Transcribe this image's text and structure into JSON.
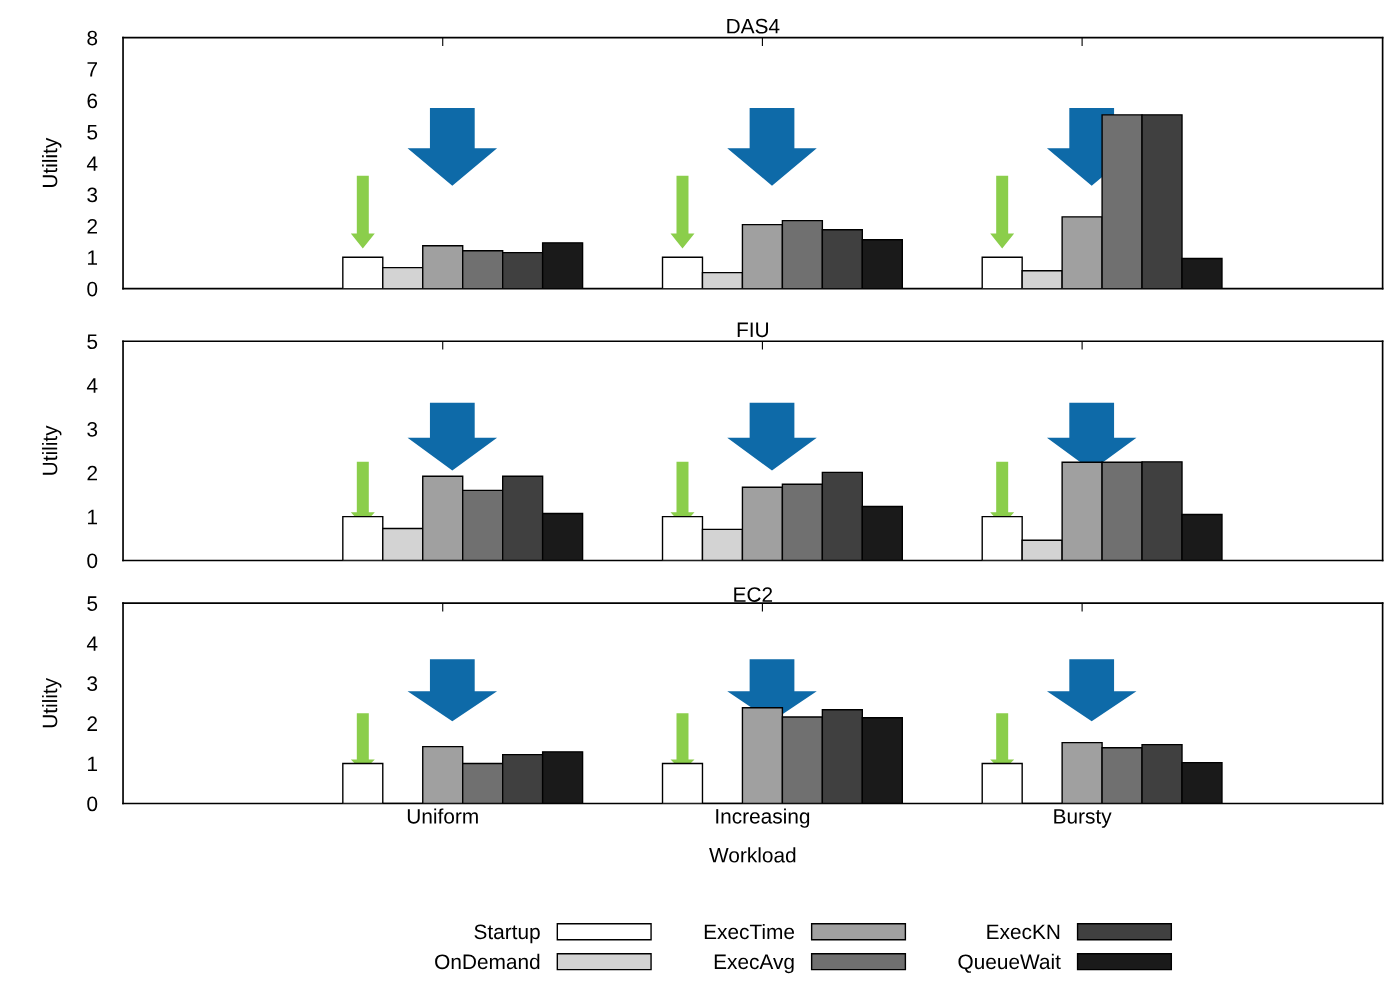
{
  "chart_data": [
    {
      "type": "bar",
      "title": "DAS4",
      "ylabel": "Utility",
      "categories": [
        null,
        null,
        null
      ],
      "ylim": [
        0,
        8
      ],
      "yticks": [
        0,
        1,
        2,
        3,
        4,
        5,
        6,
        7,
        8
      ],
      "tick_labels": "y",
      "legend": "bottom",
      "grid": false,
      "series": [
        {
          "name": "Startup",
          "color": "#ffffff",
          "values": [
            1.0,
            1.0,
            1.0
          ]
        },
        {
          "name": "OnDemand",
          "color": "#d3d3d3",
          "values": [
            0.67,
            0.51,
            0.57
          ]
        },
        {
          "name": "ExecTime",
          "color": "#a0a0a0",
          "values": [
            1.37,
            2.04,
            2.29
          ]
        },
        {
          "name": "ExecAvg",
          "color": "#707070",
          "values": [
            1.21,
            2.17,
            5.54
          ]
        },
        {
          "name": "ExecKN",
          "color": "#404040",
          "values": [
            1.15,
            1.88,
            5.54
          ]
        },
        {
          "name": "QueueWait",
          "color": "#1a1a1a",
          "values": [
            1.46,
            1.56,
            0.96
          ]
        }
      ]
    },
    {
      "type": "bar",
      "title": "FIU",
      "ylabel": "Utility",
      "categories": [
        null,
        null,
        null
      ],
      "ylim": [
        0,
        5
      ],
      "yticks": [
        0,
        1,
        2,
        3,
        4,
        5
      ],
      "tick_labels": "y",
      "legend": false,
      "grid": false,
      "series": [
        {
          "color": "#ffffff",
          "values": [
            1.0,
            1.0,
            1.0
          ]
        },
        {
          "color": "#d3d3d3",
          "values": [
            0.73,
            0.71,
            0.46
          ]
        },
        {
          "color": "#a0a0a0",
          "values": [
            1.92,
            1.67,
            2.24
          ]
        },
        {
          "color": "#707070",
          "values": [
            1.6,
            1.74,
            2.24
          ]
        },
        {
          "color": "#404040",
          "values": [
            1.92,
            2.01,
            2.25
          ]
        },
        {
          "color": "#1a1a1a",
          "values": [
            1.07,
            1.23,
            1.05
          ]
        }
      ]
    },
    {
      "type": "bar",
      "title": "EC2",
      "ylabel": "Utility",
      "xlabel": "Workload",
      "categories": [
        "Uniform",
        "Increasing",
        "Bursty"
      ],
      "ylim": [
        0,
        5
      ],
      "yticks": [
        0,
        1,
        2,
        3,
        4,
        5
      ],
      "legend": false,
      "grid": false,
      "series": [
        {
          "color": "#ffffff",
          "values": [
            1.0,
            1.0,
            1.0
          ]
        },
        {
          "color": "#d3d3d3",
          "values": [
            0.0,
            0.0,
            0.0
          ]
        },
        {
          "color": "#a0a0a0",
          "values": [
            1.42,
            2.39,
            1.52
          ]
        },
        {
          "color": "#707070",
          "values": [
            1.0,
            2.16,
            1.39
          ]
        },
        {
          "color": "#404040",
          "values": [
            1.22,
            2.34,
            1.47
          ]
        },
        {
          "color": "#1a1a1a",
          "values": [
            1.29,
            2.14,
            1.02
          ]
        }
      ]
    }
  ]
}
